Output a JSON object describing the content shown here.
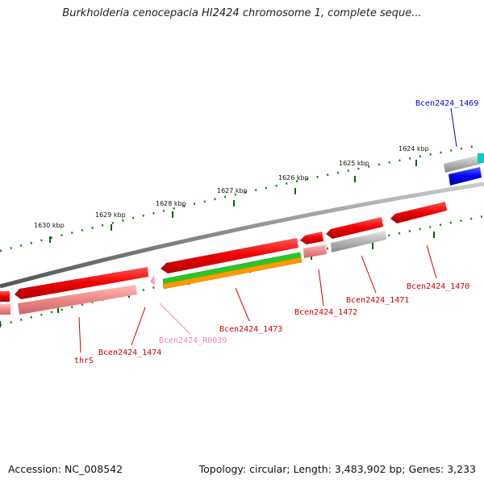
{
  "title": "Burkholderia cenocepacia HI2424 chromosome 1, complete seque...",
  "footer": {
    "accession": "Accession: NC_008542",
    "topology": "Topology: circular; Length: 3,483,902 bp; Genes: 3,233"
  },
  "kbp_ticks": [
    "1630 kbp",
    "1629 kbp",
    "1628 kbp",
    "1627 kbp",
    "1626 kbp",
    "1625 kbp",
    "1624 kbp"
  ],
  "gene_labels": [
    {
      "text": "Bcen2424_1469",
      "color": "#0000cc"
    },
    {
      "text": "Bcen2424_1470",
      "color": "#cc0000"
    },
    {
      "text": "Bcen2424_1471",
      "color": "#cc0000"
    },
    {
      "text": "Bcen2424_1472",
      "color": "#cc0000"
    },
    {
      "text": "Bcen2424_1473",
      "color": "#cc0000"
    },
    {
      "text": "Bcen2424_R0039",
      "color": "#ee88aa"
    },
    {
      "text": "Bcen2424_1474",
      "color": "#cc0000"
    },
    {
      "text": "thrS",
      "color": "#cc0000"
    }
  ],
  "colors": {
    "cds": "#ee0000",
    "gene": "#ee8888",
    "rna": "#ff99bb",
    "gray": "#aaaaaa",
    "blue": "#0000ee",
    "cyan": "#00cccc",
    "green": "#22cc22",
    "orange": "#ff9900",
    "backbone": "#888888",
    "scale": "#006600"
  }
}
